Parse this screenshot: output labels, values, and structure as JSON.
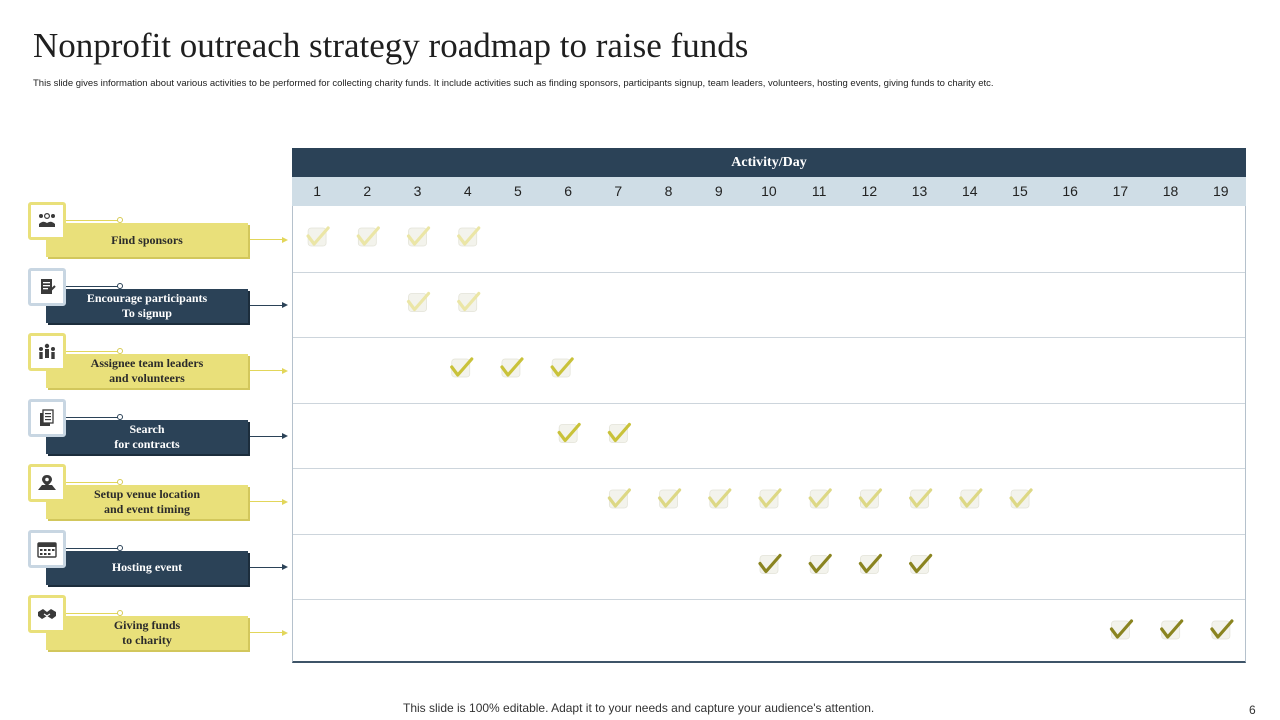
{
  "title": "Nonprofit outreach strategy roadmap to raise funds",
  "subtitle": "This slide gives information about various activities to be performed for collecting charity funds. It include activities such as finding sponsors, participants signup, team leaders, volunteers, hosting events, giving funds to charity etc.",
  "grid": {
    "header": "Activity/Day",
    "days": [
      "1",
      "2",
      "3",
      "4",
      "5",
      "6",
      "7",
      "8",
      "9",
      "10",
      "11",
      "12",
      "13",
      "14",
      "15",
      "16",
      "17",
      "18",
      "19"
    ]
  },
  "activities": [
    {
      "label": "Find  sponsors",
      "style": "yellow",
      "icon": "sponsor-icon",
      "days": [
        1,
        2,
        3,
        4
      ],
      "check_color": "#ebe6a6"
    },
    {
      "label": "Encourage  participants\nTo  signup",
      "style": "navy",
      "icon": "signup-form-icon",
      "days": [
        3,
        4
      ],
      "check_color": "#ebe6a6"
    },
    {
      "label": "Assignee team  leaders\nand  volunteers",
      "style": "yellow",
      "icon": "team-icon",
      "days": [
        4,
        5,
        6
      ],
      "check_color": "#c9c23a"
    },
    {
      "label": "Search\nfor contracts",
      "style": "navy",
      "icon": "documents-icon",
      "days": [
        6,
        7
      ],
      "check_color": "#c9c23a"
    },
    {
      "label": "Setup  venue  location\nand  event  timing",
      "style": "yellow",
      "icon": "location-icon",
      "days": [
        7,
        8,
        9,
        10,
        11,
        12,
        13,
        14,
        15
      ],
      "check_color": "#ddd885"
    },
    {
      "label": "Hosting  event",
      "style": "navy",
      "icon": "calendar-icon",
      "days": [
        10,
        11,
        12,
        13
      ],
      "check_color": "#8a8420"
    },
    {
      "label": "Giving  funds\nto  charity",
      "style": "yellow",
      "icon": "handshake-icon",
      "days": [
        17,
        18,
        19
      ],
      "check_color": "#8a8420"
    }
  ],
  "footer": "This slide is 100% editable. Adapt it to your needs and capture your audience's attention.",
  "page_number": "6"
}
